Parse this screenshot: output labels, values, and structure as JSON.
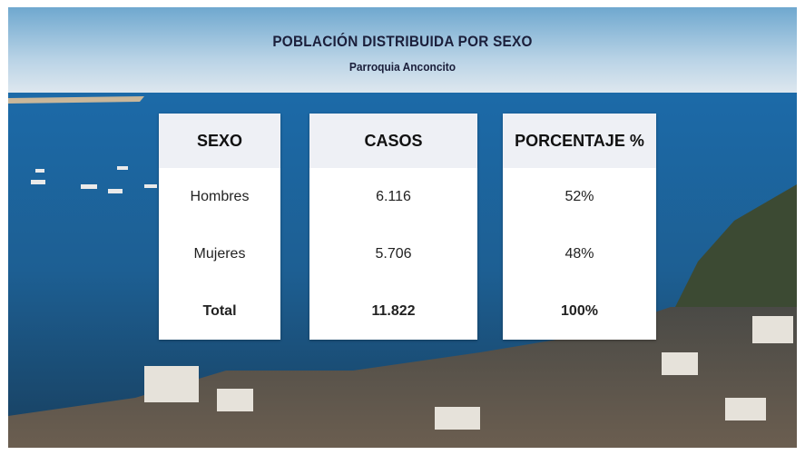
{
  "header": {
    "title": "POBLACIÓN DISTRIBUIDA POR SEXO",
    "subtitle": "Parroquia Anconcito"
  },
  "table": {
    "columns": [
      {
        "header": "SEXO",
        "cells": [
          "Hombres",
          "Mujeres",
          "Total"
        ]
      },
      {
        "header": "CASOS",
        "cells": [
          "6.116",
          "5.706",
          "11.822"
        ]
      },
      {
        "header": "PORCENTAJE %",
        "cells": [
          "52%",
          "48%",
          "100%"
        ]
      }
    ]
  }
}
